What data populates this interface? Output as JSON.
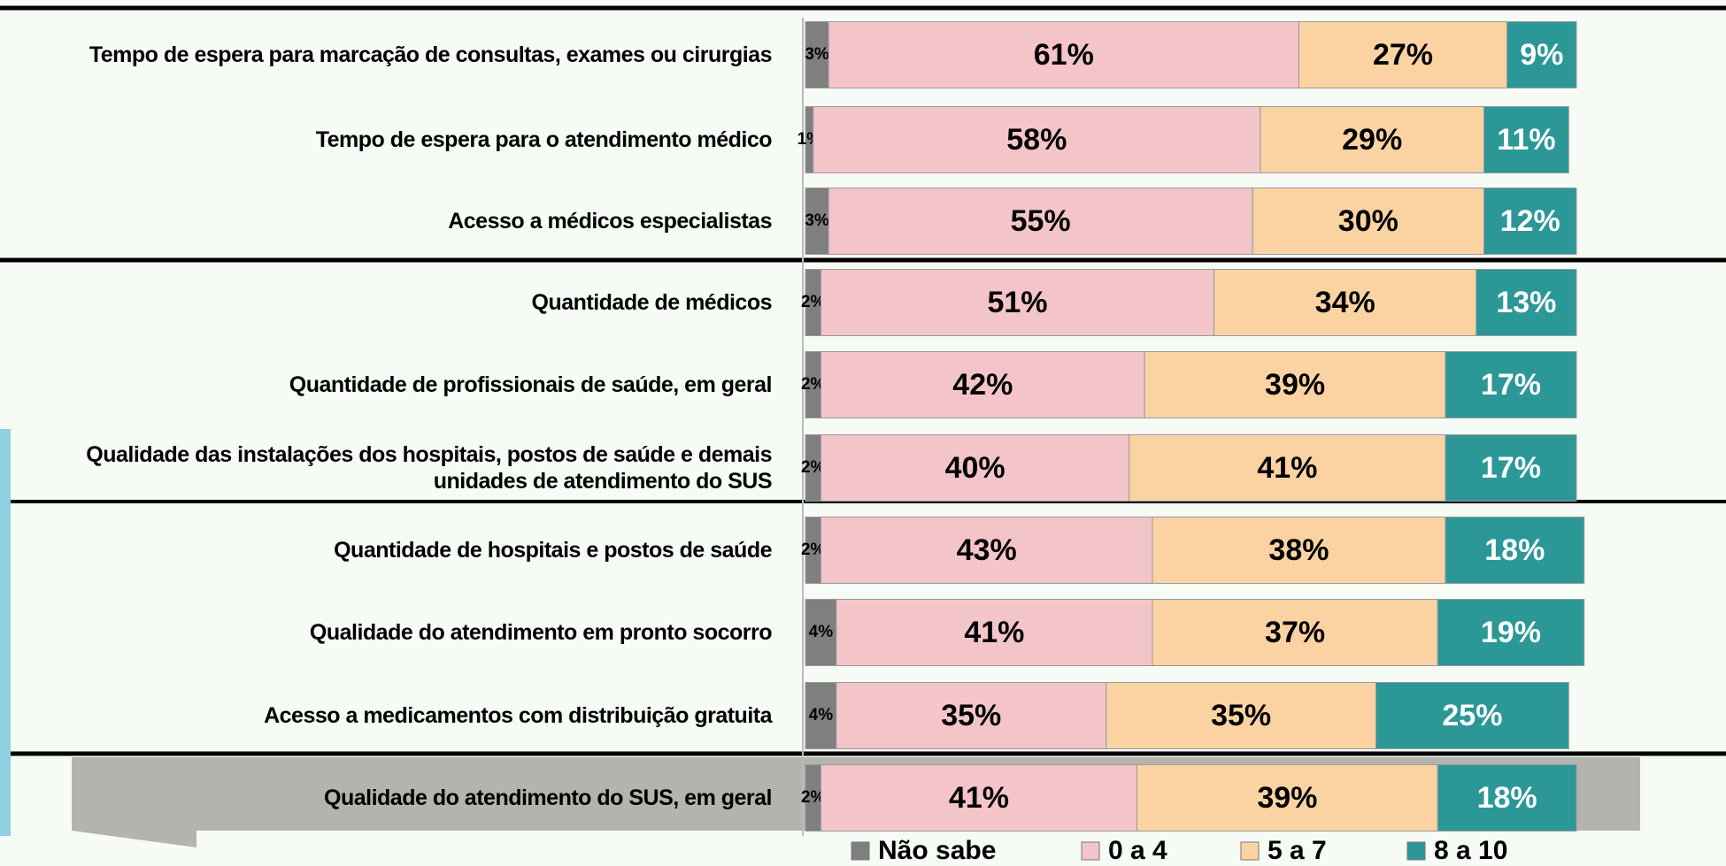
{
  "chart_data": {
    "type": "stacked-barh",
    "categories": [
      "Tempo de espera para marcação de consultas, exames ou cirurgias",
      "Tempo de espera para o atendimento médico",
      "Acesso a médicos especialistas",
      "Quantidade de médicos",
      "Quantidade de profissionais de saúde, em geral",
      "Qualidade das instalações dos hospitais,  postos de saúde e demais unidades de atendimento do SUS",
      "Quantidade de hospitais e postos de saúde",
      "Qualidade do atendimento em pronto socorro",
      "Acesso a medicamentos com distribuição gratuita",
      "Qualidade do atendimento do SUS, em geral"
    ],
    "series": [
      {
        "name": "Não sabe",
        "color": "#7f7f7f",
        "values": [
          3,
          1,
          3,
          2,
          2,
          2,
          2,
          4,
          4,
          2
        ],
        "value_labels": [
          "3%",
          "1%",
          "3%",
          "2%",
          "2%",
          "2%",
          "2%",
          "4%",
          "4%",
          "2%"
        ]
      },
      {
        "name": "0 a 4",
        "color": "#f3c5c9",
        "values": [
          61,
          58,
          55,
          51,
          42,
          40,
          43,
          41,
          35,
          41
        ],
        "value_labels": [
          "61%",
          "58%",
          "55%",
          "51%",
          "42%",
          "40%",
          "43%",
          "41%",
          "35%",
          "41%"
        ]
      },
      {
        "name": "5 a 7",
        "color": "#fbd3a3",
        "values": [
          27,
          29,
          30,
          34,
          39,
          41,
          38,
          37,
          35,
          39
        ],
        "value_labels": [
          "27%",
          "29%",
          "30%",
          "34%",
          "39%",
          "41%",
          "38%",
          "37%",
          "35%",
          "39%"
        ]
      },
      {
        "name": "8 a 10",
        "color": "#2b9797",
        "values": [
          9,
          11,
          12,
          13,
          17,
          17,
          18,
          19,
          25,
          18
        ],
        "value_labels": [
          "9%",
          "11%",
          "12%",
          "13%",
          "17%",
          "17%",
          "18%",
          "19%",
          "25%",
          "18%"
        ]
      }
    ]
  }
}
